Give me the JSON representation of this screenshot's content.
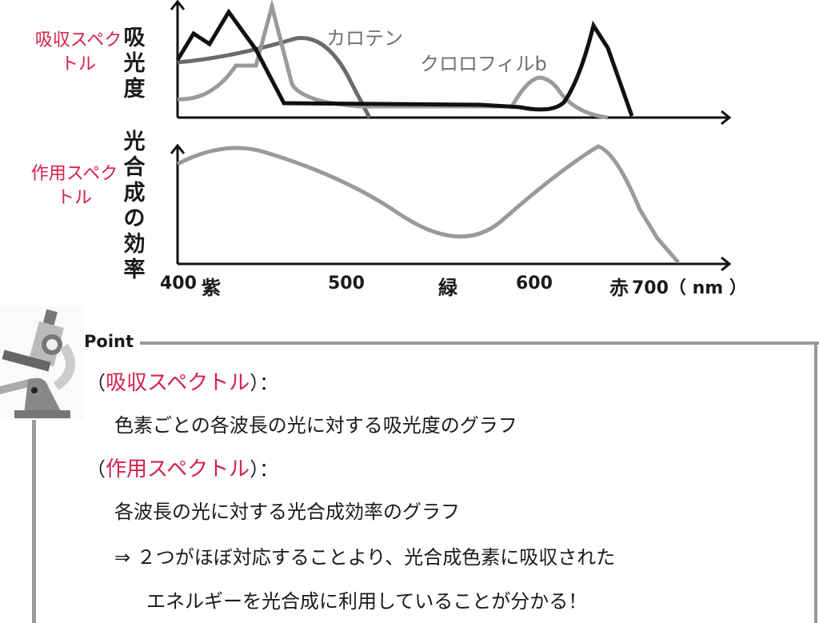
{
  "absorption": {
    "side_label": "吸収スペクトル",
    "axis_label": "吸光度",
    "curves": [
      {
        "name": "カロテン",
        "color": "#6a6a6a"
      },
      {
        "name": "クロロフィルb",
        "color": "#9a9a9a"
      },
      {
        "color": "#111111"
      }
    ]
  },
  "action": {
    "side_label": "作用スペクトル",
    "axis_label": "光合成の効率",
    "color": "#9a9a9a"
  },
  "x_axis": {
    "ticks": [
      "400",
      "紫",
      "500",
      "緑",
      "600",
      "赤",
      "700（ nm ）"
    ]
  },
  "point": {
    "title": "Point",
    "lines": [
      {
        "open": "（",
        "term": "吸収スペクトル",
        "close": "）："
      },
      {
        "text": "色素ごとの各波長の光に対する吸光度のグラフ"
      },
      {
        "open": "（",
        "term": "作用スペクトル",
        "close": "）："
      },
      {
        "text": "各波長の光に対する光合成効率のグラフ"
      },
      {
        "text": "⇒ ２つがほぼ対応することより、光合成色素に吸収された"
      },
      {
        "text": "エネルギーを光合成に利用していることが分かる！"
      }
    ]
  }
}
